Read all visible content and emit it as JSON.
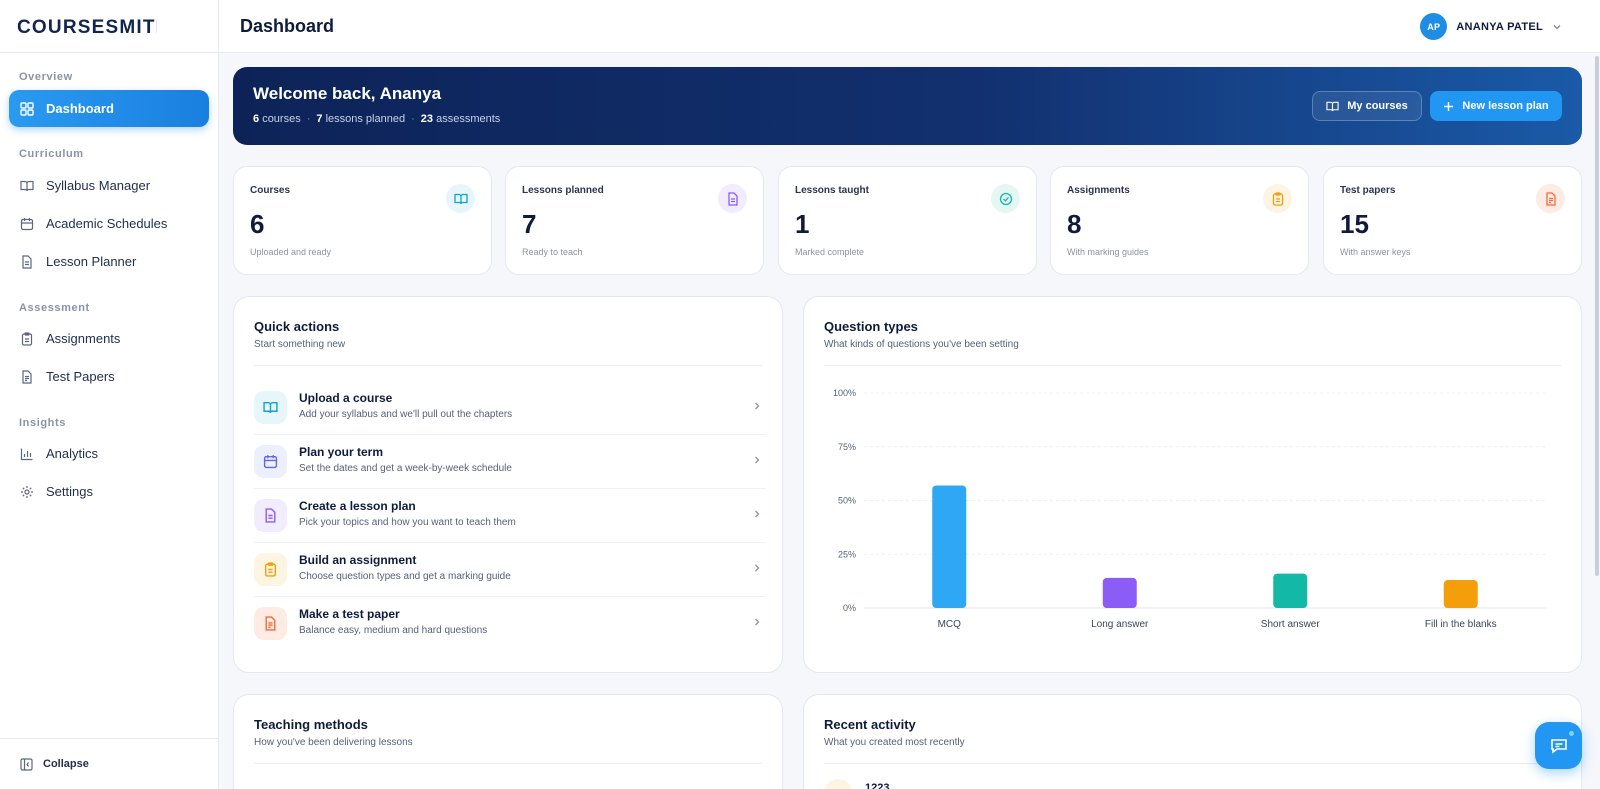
{
  "app": {
    "brand": "COURSESMITH"
  },
  "header": {
    "title": "Dashboard",
    "user_initials": "AP",
    "user_name": "ANANYA PATEL"
  },
  "sidebar": {
    "sections": [
      "Overview",
      "Curriculum",
      "Assessment",
      "Insights"
    ],
    "items": [
      {
        "label": "Dashboard",
        "icon": "grid-icon"
      },
      {
        "label": "Syllabus Manager",
        "icon": "book-icon"
      },
      {
        "label": "Academic Schedules",
        "icon": "calendar-icon"
      },
      {
        "label": "Lesson Planner",
        "icon": "document-icon"
      },
      {
        "label": "Assignments",
        "icon": "clipboard-icon"
      },
      {
        "label": "Test Papers",
        "icon": "test-paper-icon"
      },
      {
        "label": "Analytics",
        "icon": "bar-chart-icon"
      },
      {
        "label": "Settings",
        "icon": "gear-icon"
      }
    ],
    "collapse_label": "Collapse"
  },
  "banner": {
    "title": "Welcome back, Ananya",
    "courses_count": "6",
    "courses_label": "courses",
    "lessons_count": "7",
    "lessons_label": "lessons planned",
    "assessments_count": "23",
    "assessments_label": "assessments",
    "my_courses_label": "My courses",
    "new_lesson_label": "New lesson plan"
  },
  "stats": [
    {
      "label": "Courses",
      "value": "6",
      "desc": "Uploaded and ready",
      "icon": "book-icon",
      "color": "#0ea5c6",
      "bg": "#e6f6fb"
    },
    {
      "label": "Lessons planned",
      "value": "7",
      "desc": "Ready to teach",
      "icon": "document-icon",
      "color": "#8b5cf6",
      "bg": "#f1ecfe"
    },
    {
      "label": "Lessons taught",
      "value": "1",
      "desc": "Marked complete",
      "icon": "check-circle-icon",
      "color": "#14b8a6",
      "bg": "#e4f7f3"
    },
    {
      "label": "Assignments",
      "value": "8",
      "desc": "With marking guides",
      "icon": "clipboard-icon",
      "color": "#f59e0b",
      "bg": "#fef4e2"
    },
    {
      "label": "Test papers",
      "value": "15",
      "desc": "With answer keys",
      "icon": "test-paper-icon",
      "color": "#f26b3a",
      "bg": "#fdebe4"
    }
  ],
  "quick_actions": {
    "title": "Quick actions",
    "subtitle": "Start something new",
    "items": [
      {
        "title": "Upload a course",
        "sub": "Add your syllabus and we'll pull out the chapters",
        "icon": "book-icon",
        "color": "#0ea5c6",
        "bg": "#e6f6fb"
      },
      {
        "title": "Plan your term",
        "sub": "Set the dates and get a week-by-week schedule",
        "icon": "calendar-icon",
        "color": "#6366f1",
        "bg": "#eceffe"
      },
      {
        "title": "Create a lesson plan",
        "sub": "Pick your topics and how you want to teach them",
        "icon": "document-icon",
        "color": "#8b5cf6",
        "bg": "#f1ecfe"
      },
      {
        "title": "Build an assignment",
        "sub": "Choose question types and get a marking guide",
        "icon": "clipboard-icon",
        "color": "#f59e0b",
        "bg": "#fef4e2"
      },
      {
        "title": "Make a test paper",
        "sub": "Balance easy, medium and hard questions",
        "icon": "test-paper-icon",
        "color": "#f26b3a",
        "bg": "#fdebe4"
      }
    ]
  },
  "question_types": {
    "title": "Question types",
    "subtitle": "What kinds of questions you've been setting"
  },
  "chart_data": {
    "type": "bar",
    "title": "Question types",
    "categories": [
      "MCQ",
      "Long answer",
      "Short answer",
      "Fill in the blanks"
    ],
    "values": [
      57,
      14,
      16,
      13
    ],
    "colors": [
      "#2ea8f5",
      "#8b5cf6",
      "#14b8a6",
      "#f59e0b"
    ],
    "ylim": [
      0,
      100
    ],
    "yticks": [
      "0%",
      "25%",
      "50%",
      "75%",
      "100%"
    ],
    "grid": true,
    "unit": "%"
  },
  "teaching_methods": {
    "title": "Teaching methods",
    "subtitle": "How you've been delivering lessons"
  },
  "recent_activity": {
    "title": "Recent activity",
    "subtitle": "What you created most recently",
    "first_item": "1223"
  }
}
